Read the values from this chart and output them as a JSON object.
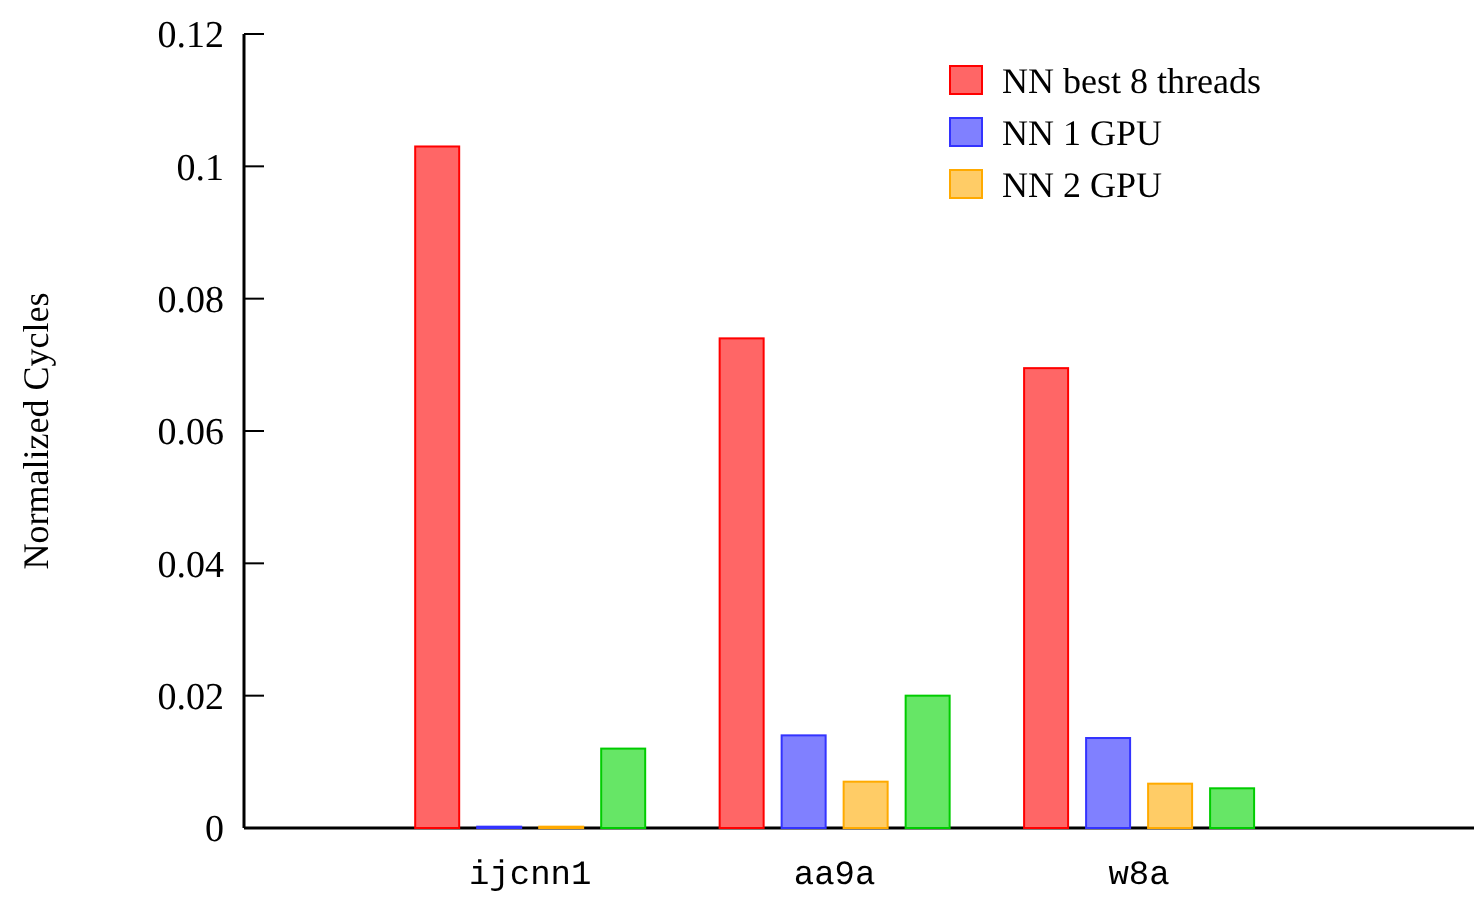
{
  "chart_data": {
    "type": "bar",
    "ylabel": "Normalized Cycles",
    "categories": [
      "ijcnn1",
      "aa9a",
      "w8a"
    ],
    "series": [
      {
        "name": "NN best 8 threads",
        "color": "#ff6666",
        "values": [
          0.103,
          0.074,
          0.0695
        ]
      },
      {
        "name": "NN 1 GPU",
        "color": "#8080ff",
        "values": [
          0.0002,
          0.014,
          0.0136
        ]
      },
      {
        "name": "NN 2 GPU",
        "color": "#ffcc66",
        "values": [
          0.0002,
          0.007,
          0.0067
        ]
      },
      {
        "color": "#66e666",
        "values": [
          0.012,
          0.02,
          0.006
        ]
      }
    ],
    "ylim": [
      0,
      0.12
    ],
    "yticks": [
      0,
      0.02,
      0.04,
      0.06,
      0.08,
      0.1,
      0.12
    ],
    "legend": "top right"
  }
}
